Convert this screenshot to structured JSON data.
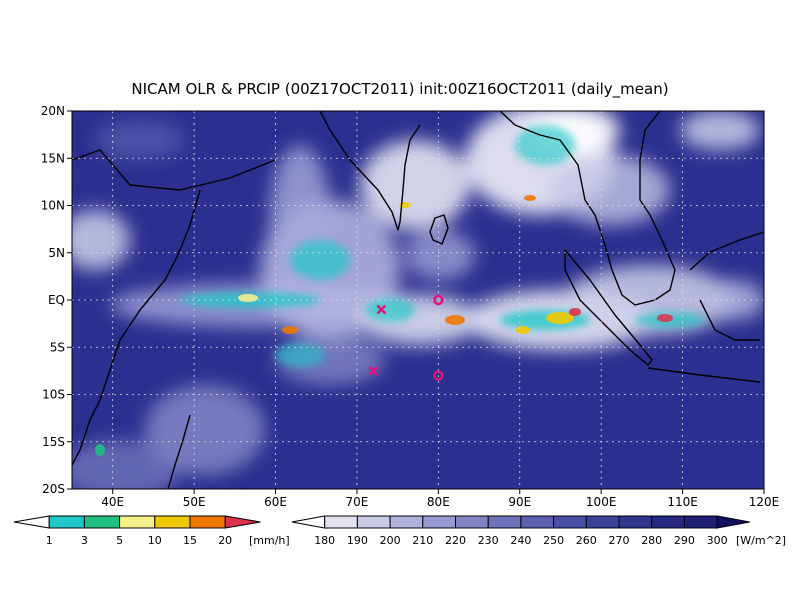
{
  "title": "NICAM OLR & PRCIP (00Z17OCT2011) init:00Z16OCT2011 (daily_mean)",
  "colors": {
    "background": "#ffffff",
    "olr_low": "#ffffff",
    "olr_high": "#101060",
    "map_base": "#2b2f8f",
    "coastline": "#000000",
    "grid": "#dddddd",
    "marker": "#e0157a"
  },
  "axes": {
    "lat_labels": [
      "20N",
      "15N",
      "10N",
      "5N",
      "EQ",
      "5S",
      "10S",
      "15S",
      "20S"
    ],
    "lon_labels": [
      "40E",
      "50E",
      "60E",
      "70E",
      "80E",
      "90E",
      "100E",
      "110E",
      "120E"
    ],
    "lon_range": [
      35,
      120
    ],
    "lat_range": [
      -20,
      20
    ]
  },
  "precip_colorbar": {
    "unit": "[mm/h]",
    "labels": [
      "1",
      "3",
      "5",
      "10",
      "15",
      "20"
    ],
    "colors": [
      "#ffffff",
      "#22c8c8",
      "#1fc080",
      "#f5f08a",
      "#f2c800",
      "#f07800",
      "#e0304a"
    ]
  },
  "olr_colorbar": {
    "unit": "[W/m^2]",
    "labels": [
      "180",
      "190",
      "200",
      "210",
      "220",
      "230",
      "240",
      "250",
      "260",
      "270",
      "280",
      "290",
      "300"
    ],
    "colors": [
      "#ffffff",
      "#e2e2ef",
      "#c9cae6",
      "#b0b2dc",
      "#989bd1",
      "#8286c6",
      "#6d72bc",
      "#5a5fb0",
      "#4a4fa6",
      "#3c419a",
      "#30358e",
      "#262a82",
      "#1c1f74",
      "#101060"
    ]
  },
  "markers": [
    {
      "type": "x",
      "lon": 73,
      "lat": -1
    },
    {
      "type": "x",
      "lon": 72,
      "lat": -7.5
    },
    {
      "type": "o",
      "lon": 80,
      "lat": 0
    },
    {
      "type": "o",
      "lon": 80,
      "lat": -8
    }
  ]
}
